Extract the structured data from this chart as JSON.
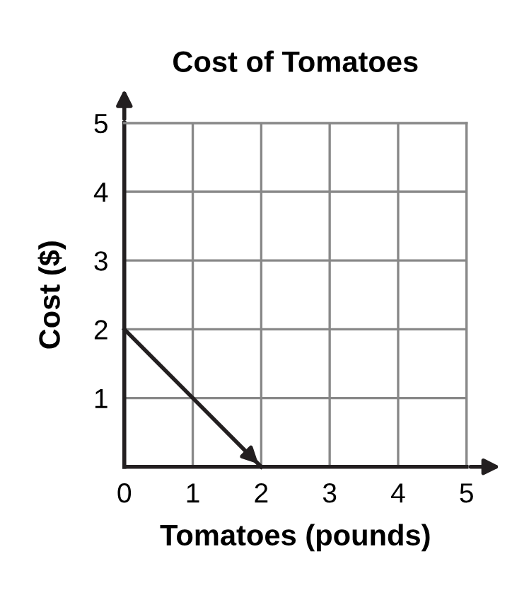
{
  "chart_data": {
    "type": "line",
    "title": "Cost of Tomatoes",
    "xlabel": "Tomatoes (pounds)",
    "ylabel": "Cost ($)",
    "x": [
      0,
      2
    ],
    "series": [
      {
        "color": "#231f20",
        "values": [
          2,
          0
        ]
      }
    ],
    "xlim": [
      0,
      5
    ],
    "ylim": [
      0,
      5
    ],
    "xticks": [
      0,
      1,
      2,
      3,
      4,
      5
    ],
    "yticks": [
      1,
      2,
      3,
      4,
      5
    ],
    "grid": true,
    "marker": "none",
    "line_style": "solid"
  }
}
